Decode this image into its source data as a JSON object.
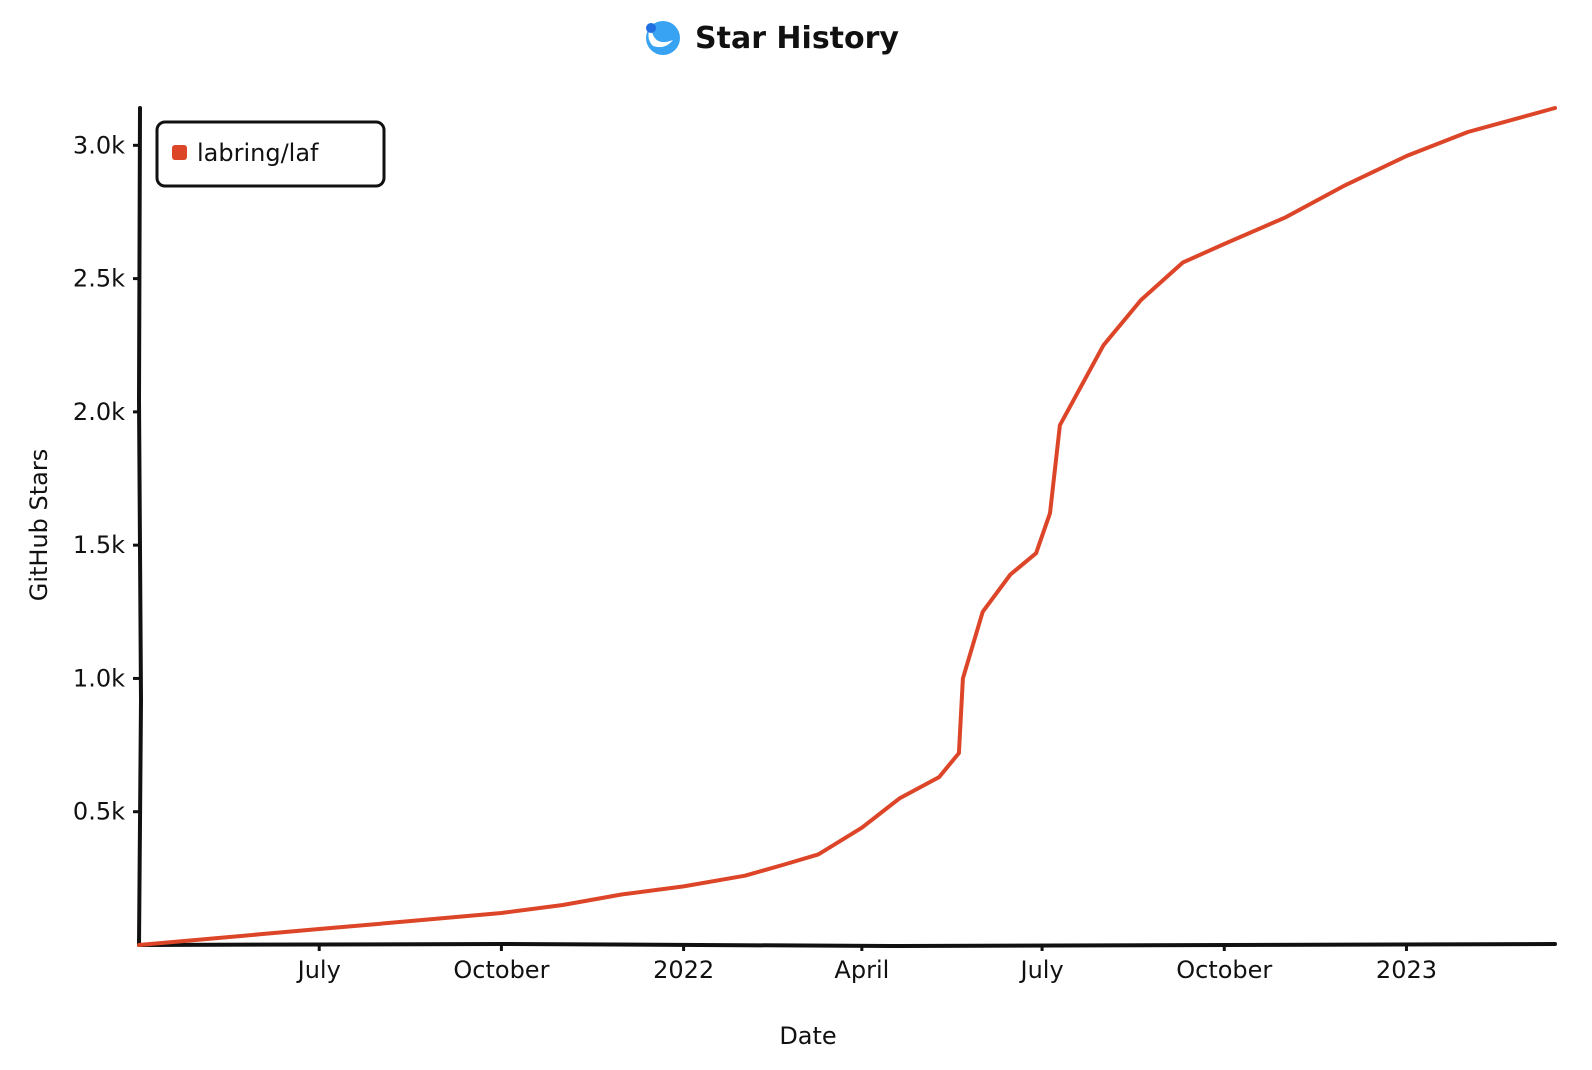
{
  "chart_data": {
    "type": "line",
    "title": "Star History",
    "xlabel": "Date",
    "ylabel": "GitHub Stars",
    "x_ticks": [
      {
        "date": "2021-07-01",
        "label": "July"
      },
      {
        "date": "2021-10-01",
        "label": "October"
      },
      {
        "date": "2022-01-01",
        "label": "2022"
      },
      {
        "date": "2022-04-01",
        "label": "April"
      },
      {
        "date": "2022-07-01",
        "label": "July"
      },
      {
        "date": "2022-10-01",
        "label": "October"
      },
      {
        "date": "2023-01-01",
        "label": "2023"
      }
    ],
    "y_ticks": [
      {
        "value": 500,
        "label": "0.5k"
      },
      {
        "value": 1000,
        "label": "1.0k"
      },
      {
        "value": 1500,
        "label": "1.5k"
      },
      {
        "value": 2000,
        "label": "2.0k"
      },
      {
        "value": 2500,
        "label": "2.5k"
      },
      {
        "value": 3000,
        "label": "3.0k"
      }
    ],
    "xlim": [
      "2021-04-01",
      "2023-03-17"
    ],
    "ylim": [
      0,
      3140
    ],
    "grid": false,
    "legend_position": "top-left",
    "series": [
      {
        "name": "labring/laf",
        "color": "#dd4528",
        "points": [
          [
            "2021-04-01",
            0
          ],
          [
            "2021-05-01",
            20
          ],
          [
            "2021-06-01",
            40
          ],
          [
            "2021-07-01",
            60
          ],
          [
            "2021-08-01",
            80
          ],
          [
            "2021-09-01",
            100
          ],
          [
            "2021-10-01",
            120
          ],
          [
            "2021-11-01",
            150
          ],
          [
            "2021-12-01",
            190
          ],
          [
            "2022-01-01",
            220
          ],
          [
            "2022-02-01",
            260
          ],
          [
            "2022-02-20",
            300
          ],
          [
            "2022-03-10",
            340
          ],
          [
            "2022-04-01",
            440
          ],
          [
            "2022-04-20",
            550
          ],
          [
            "2022-05-10",
            630
          ],
          [
            "2022-05-20",
            720
          ],
          [
            "2022-05-22",
            1000
          ],
          [
            "2022-06-01",
            1250
          ],
          [
            "2022-06-15",
            1390
          ],
          [
            "2022-06-28",
            1470
          ],
          [
            "2022-07-05",
            1620
          ],
          [
            "2022-07-10",
            1950
          ],
          [
            "2022-08-01",
            2250
          ],
          [
            "2022-08-20",
            2420
          ],
          [
            "2022-09-10",
            2560
          ],
          [
            "2022-10-01",
            2630
          ],
          [
            "2022-11-01",
            2730
          ],
          [
            "2022-12-01",
            2850
          ],
          [
            "2023-01-01",
            2960
          ],
          [
            "2023-02-01",
            3050
          ],
          [
            "2023-03-17",
            3140
          ]
        ]
      }
    ]
  }
}
